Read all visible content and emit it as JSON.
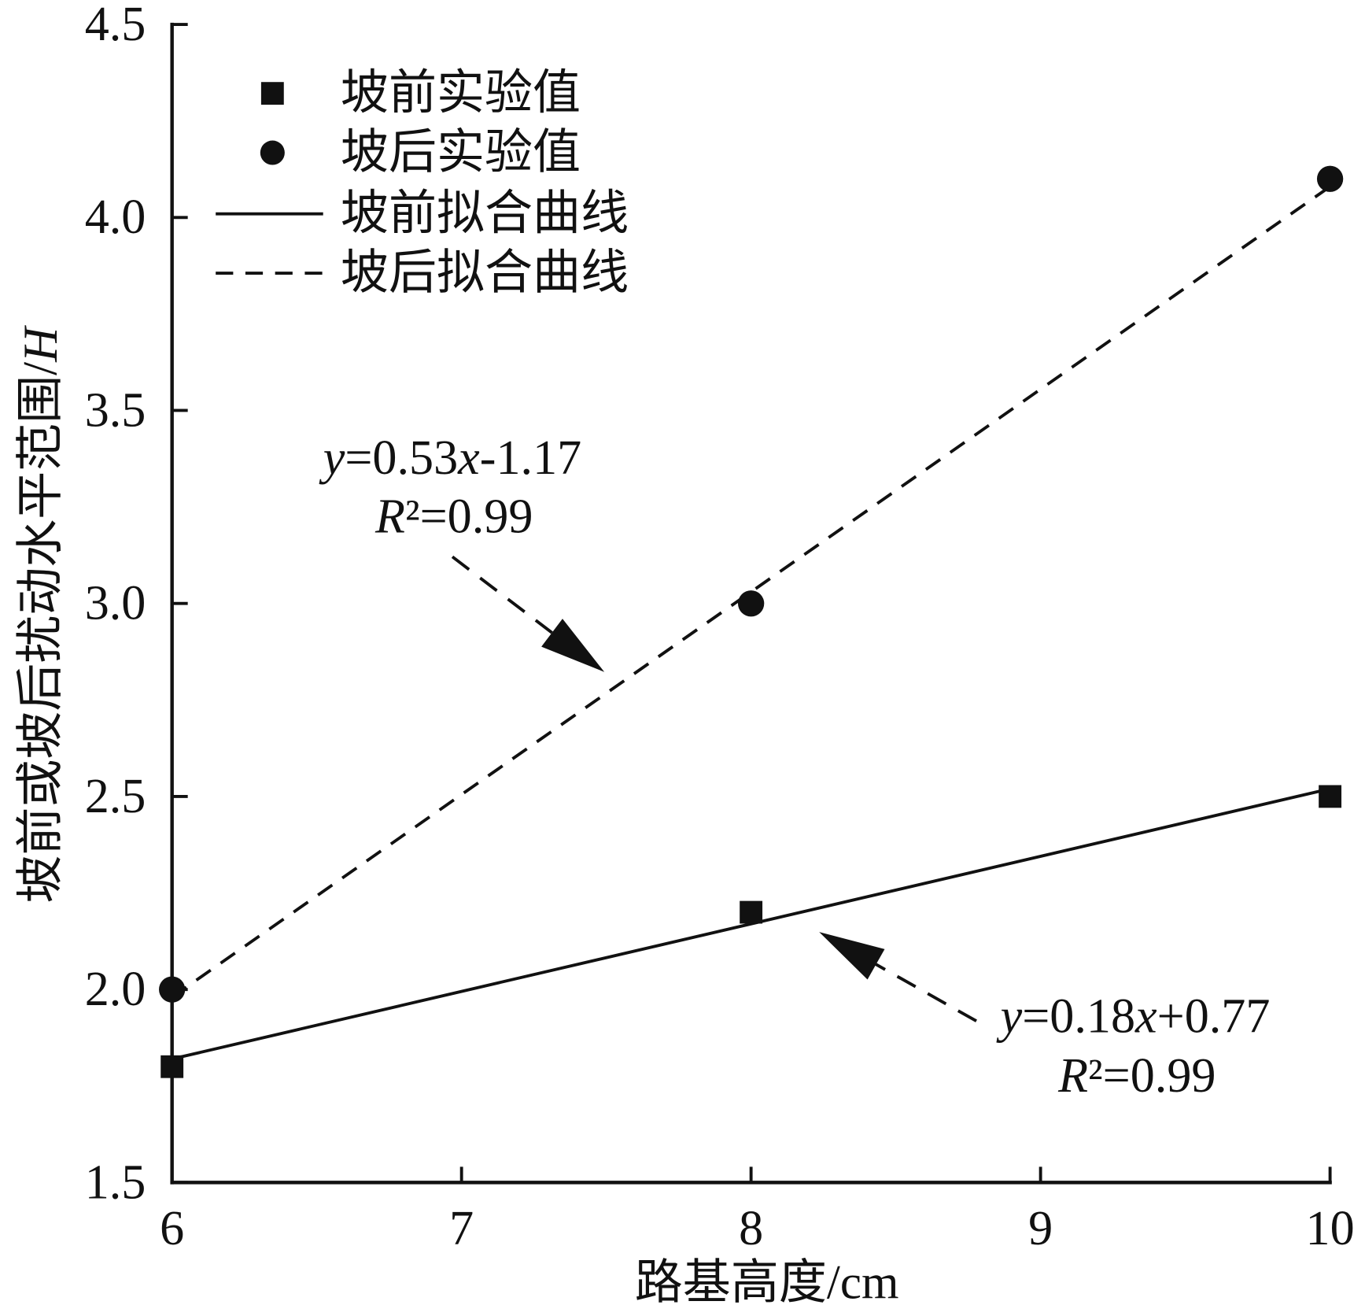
{
  "chart_data": {
    "type": "scatter",
    "xlabel": "路基高度/cm",
    "ylabel": "坡前或坡后扰动水平范围/H",
    "xlim": [
      6,
      10
    ],
    "ylim": [
      1.5,
      4.5
    ],
    "xticks": [
      "6",
      "7",
      "8",
      "9",
      "10"
    ],
    "yticks": [
      "1.5",
      "2.0",
      "2.5",
      "3.0",
      "3.5",
      "4.0",
      "4.5"
    ],
    "grid": false,
    "legend": "top-left",
    "color": "#111111",
    "series": [
      {
        "name": "坡前实验值",
        "kind": "scatter",
        "marker": "square",
        "x": [
          6,
          8,
          10
        ],
        "y": [
          1.8,
          2.2,
          2.5
        ]
      },
      {
        "name": "坡后实验值",
        "kind": "scatter",
        "marker": "circle",
        "x": [
          6,
          8,
          10
        ],
        "y": [
          2.0,
          3.0,
          4.1
        ]
      },
      {
        "name": "坡前拟合曲线",
        "kind": "line",
        "style": "solid",
        "x": [
          6,
          10
        ],
        "y": [
          1.82,
          2.52
        ]
      },
      {
        "name": "坡后拟合曲线",
        "kind": "line",
        "style": "dashed",
        "x": [
          6,
          10
        ],
        "y": [
          1.98,
          4.08
        ]
      }
    ],
    "annotations": [
      {
        "equation": "y=0.53x-1.17",
        "r2": "R²=0.99"
      },
      {
        "equation": "y=0.18x+0.77",
        "r2": "R²=0.99"
      }
    ]
  }
}
